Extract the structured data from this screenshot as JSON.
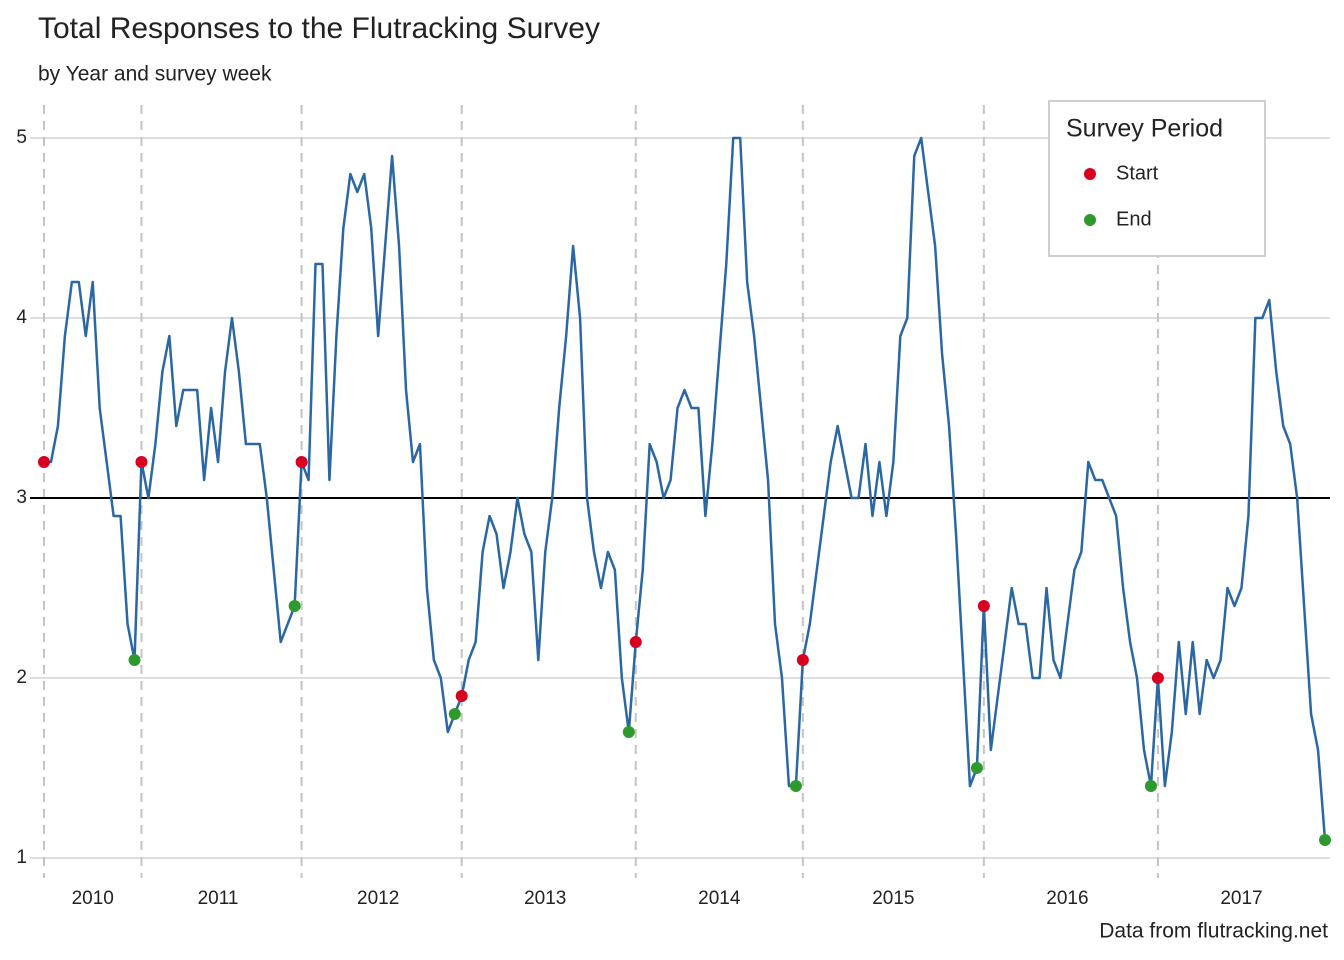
{
  "chart_data": {
    "type": "line",
    "title": "Total Responses to the Flutracking Survey",
    "subtitle": "by Year and survey week",
    "caption": "Data from flutracking.net",
    "legend_title": "Survey Period",
    "legend_position": "top-right",
    "grid": true,
    "hline": 3,
    "ylim": [
      0.95,
      5.05
    ],
    "yticks": [
      1,
      2,
      3,
      4,
      5
    ],
    "categories": [
      null,
      null,
      null,
      null,
      null,
      null,
      null,
      "2010",
      null,
      null,
      null,
      null,
      null,
      null,
      null,
      null,
      null,
      null,
      null,
      null,
      null,
      null,
      null,
      null,
      null,
      "2011",
      null,
      null,
      null,
      null,
      null,
      null,
      null,
      null,
      null,
      null,
      null,
      null,
      null,
      null,
      null,
      null,
      null,
      null,
      null,
      null,
      null,
      null,
      "2012",
      null,
      null,
      null,
      null,
      null,
      null,
      null,
      null,
      null,
      null,
      null,
      null,
      null,
      null,
      null,
      null,
      null,
      null,
      null,
      null,
      null,
      null,
      null,
      "2013",
      null,
      null,
      null,
      null,
      null,
      null,
      null,
      null,
      null,
      null,
      null,
      null,
      null,
      null,
      null,
      null,
      null,
      null,
      null,
      null,
      null,
      null,
      null,
      null,
      "2014",
      null,
      null,
      null,
      null,
      null,
      null,
      null,
      null,
      null,
      null,
      null,
      null,
      null,
      null,
      null,
      null,
      null,
      null,
      null,
      null,
      null,
      null,
      null,
      null,
      "2015",
      null,
      null,
      null,
      null,
      null,
      null,
      null,
      null,
      null,
      null,
      null,
      null,
      null,
      null,
      null,
      null,
      null,
      null,
      null,
      null,
      null,
      null,
      null,
      null,
      "2016",
      null,
      null,
      null,
      null,
      null,
      null,
      null,
      null,
      null,
      null,
      null,
      null,
      null,
      null,
      null,
      null,
      null,
      null,
      null,
      null,
      null,
      null,
      null,
      null,
      "2017",
      null,
      null,
      null,
      null,
      null,
      null,
      null,
      null,
      null,
      null,
      null,
      null
    ],
    "values": [
      3.2,
      3.2,
      3.4,
      3.9,
      4.2,
      4.2,
      3.9,
      4.2,
      3.5,
      3.2,
      2.9,
      2.9,
      2.3,
      2.1,
      3.2,
      3.0,
      3.3,
      3.7,
      3.9,
      3.4,
      3.6,
      3.6,
      3.6,
      3.1,
      3.5,
      3.2,
      3.7,
      4.0,
      3.7,
      3.3,
      3.3,
      3.3,
      3.0,
      2.6,
      2.2,
      2.3,
      2.4,
      3.2,
      3.1,
      4.3,
      4.3,
      3.1,
      3.9,
      4.5,
      4.8,
      4.7,
      4.8,
      4.5,
      3.9,
      4.4,
      4.9,
      4.4,
      3.6,
      3.2,
      3.3,
      2.5,
      2.1,
      2.0,
      1.7,
      1.8,
      1.9,
      2.1,
      2.2,
      2.7,
      2.9,
      2.8,
      2.5,
      2.7,
      3.0,
      2.8,
      2.7,
      2.1,
      2.7,
      3.0,
      3.5,
      3.9,
      4.4,
      4.0,
      3.0,
      2.7,
      2.5,
      2.7,
      2.6,
      2.0,
      1.7,
      2.2,
      2.6,
      3.3,
      3.2,
      3.0,
      3.1,
      3.5,
      3.6,
      3.5,
      3.5,
      2.9,
      3.3,
      3.8,
      4.3,
      5.0,
      5.0,
      4.2,
      3.9,
      3.5,
      3.1,
      2.3,
      2.0,
      1.4,
      1.4,
      2.1,
      2.3,
      2.6,
      2.9,
      3.2,
      3.4,
      3.2,
      3.0,
      3.0,
      3.3,
      2.9,
      3.2,
      2.9,
      3.2,
      3.9,
      4.0,
      4.9,
      5.0,
      4.7,
      4.4,
      3.8,
      3.4,
      2.8,
      2.1,
      1.4,
      1.5,
      2.4,
      1.6,
      1.9,
      2.2,
      2.5,
      2.3,
      2.3,
      2.0,
      2.0,
      2.5,
      2.1,
      2.0,
      2.3,
      2.6,
      2.7,
      3.2,
      3.1,
      3.1,
      3.0,
      2.9,
      2.5,
      2.2,
      2.0,
      1.6,
      1.4,
      2.0,
      1.4,
      1.7,
      2.2,
      1.8,
      2.2,
      1.8,
      2.1,
      2.0,
      2.1,
      2.5,
      2.4,
      2.5,
      2.9,
      4.0,
      4.0,
      4.1,
      3.7,
      3.4,
      3.3,
      3.0,
      2.4,
      1.8,
      1.6,
      1.1
    ],
    "color": "#2b67a3",
    "series": [
      {
        "name": "Start",
        "color": "#d7001f",
        "values": [
          3.2,
          null,
          null,
          null,
          null,
          null,
          null,
          null,
          null,
          null,
          null,
          null,
          null,
          null,
          3.2,
          null,
          null,
          null,
          null,
          null,
          null,
          null,
          null,
          null,
          null,
          null,
          null,
          null,
          null,
          null,
          null,
          null,
          null,
          null,
          null,
          null,
          null,
          3.2,
          null,
          null,
          null,
          null,
          null,
          null,
          null,
          null,
          null,
          null,
          null,
          null,
          null,
          null,
          null,
          null,
          null,
          null,
          null,
          null,
          null,
          null,
          1.9,
          null,
          null,
          null,
          null,
          null,
          null,
          null,
          null,
          null,
          null,
          null,
          null,
          null,
          null,
          null,
          null,
          null,
          null,
          null,
          null,
          null,
          null,
          null,
          null,
          2.2,
          null,
          null,
          null,
          null,
          null,
          null,
          null,
          null,
          null,
          null,
          null,
          null,
          null,
          null,
          null,
          null,
          null,
          null,
          null,
          null,
          null,
          null,
          null,
          2.1,
          null,
          null,
          null,
          null,
          null,
          null,
          null,
          null,
          null,
          null,
          null,
          null,
          null,
          null,
          null,
          null,
          null,
          null,
          null,
          null,
          null,
          null,
          null,
          null,
          null,
          2.4,
          null,
          null,
          null,
          null,
          null,
          null,
          null,
          null,
          null,
          null,
          null,
          null,
          null,
          null,
          null,
          null,
          null,
          null,
          null,
          null,
          null,
          null,
          null,
          null,
          2.0,
          null,
          null,
          null,
          null,
          null,
          null,
          null,
          null,
          null,
          null,
          null,
          null,
          null,
          null,
          null,
          null,
          null,
          null,
          null,
          null,
          null,
          null,
          null,
          null
        ]
      },
      {
        "name": "End",
        "color": "#2e9a2e",
        "values": [
          null,
          null,
          null,
          null,
          null,
          null,
          null,
          null,
          null,
          null,
          null,
          null,
          null,
          2.1,
          null,
          null,
          null,
          null,
          null,
          null,
          null,
          null,
          null,
          null,
          null,
          null,
          null,
          null,
          null,
          null,
          null,
          null,
          null,
          null,
          null,
          null,
          2.4,
          null,
          null,
          null,
          null,
          null,
          null,
          null,
          null,
          null,
          null,
          null,
          null,
          null,
          null,
          null,
          null,
          null,
          null,
          null,
          null,
          null,
          null,
          1.8,
          null,
          null,
          null,
          null,
          null,
          null,
          null,
          null,
          null,
          null,
          null,
          null,
          null,
          null,
          null,
          null,
          null,
          null,
          null,
          null,
          null,
          null,
          null,
          null,
          1.7,
          null,
          null,
          null,
          null,
          null,
          null,
          null,
          null,
          null,
          null,
          null,
          null,
          null,
          null,
          null,
          null,
          null,
          null,
          null,
          null,
          null,
          null,
          null,
          1.4,
          null,
          null,
          null,
          null,
          null,
          null,
          null,
          null,
          null,
          null,
          null,
          null,
          null,
          null,
          null,
          null,
          null,
          null,
          null,
          null,
          null,
          null,
          null,
          null,
          null,
          1.5,
          null,
          null,
          null,
          null,
          null,
          null,
          null,
          null,
          null,
          null,
          null,
          null,
          null,
          null,
          null,
          null,
          null,
          null,
          null,
          null,
          null,
          null,
          null,
          null,
          1.4,
          null,
          null,
          null,
          null,
          null,
          null,
          null,
          null,
          null,
          null,
          null,
          null,
          null,
          null,
          null,
          null,
          null,
          null,
          null,
          null,
          null,
          null,
          null,
          null,
          1.1
        ]
      }
    ]
  }
}
